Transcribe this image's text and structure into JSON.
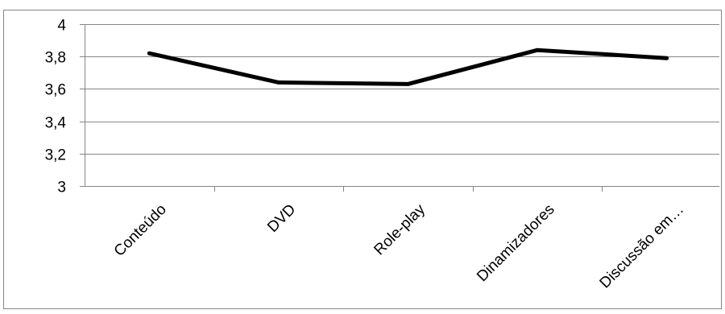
{
  "chart_data": {
    "type": "line",
    "title": "",
    "xlabel": "",
    "ylabel": "",
    "categories": [
      "Conteúdo",
      "DVD",
      "Role-play",
      "Dinamizadores",
      "Discussão em…"
    ],
    "series": [
      {
        "values": [
          3.82,
          3.64,
          3.63,
          3.84,
          3.79
        ]
      }
    ],
    "ylim": [
      3,
      4
    ],
    "y_ticks": [
      "3",
      "3,2",
      "3,4",
      "3,6",
      "3,8",
      "4"
    ],
    "y_tick_values": [
      3,
      3.2,
      3.4,
      3.6,
      3.8,
      4
    ],
    "grid": true,
    "legend": "none",
    "colors": {
      "line": "#000000",
      "grid": "#868686",
      "axis": "#868686",
      "border": "#868686"
    }
  }
}
